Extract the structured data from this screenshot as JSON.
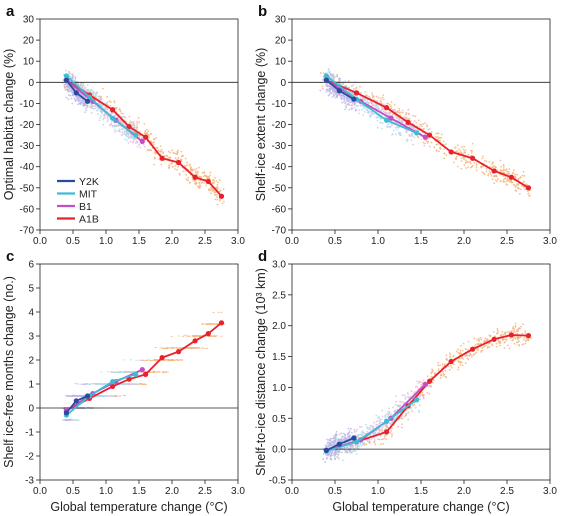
{
  "colors": {
    "Y2K": "#2a4aa0",
    "MIT": "#3fbcd4",
    "B1": "#c24fc8",
    "A1B": "#e8212b",
    "cloud_blue": "#b9b4e6",
    "cloud_cyan": "#a8e0ea",
    "cloud_pink": "#e8b8ea",
    "cloud_orange": "#f4b27a"
  },
  "chart_data": [
    {
      "type": "line",
      "panel_label": "a",
      "ylabel": "Optimal habitat change (%)",
      "xlabel": "",
      "xlim": [
        0.0,
        3.0
      ],
      "ylim": [
        -70,
        30
      ],
      "xticks": [
        "0.0",
        "0.5",
        "1.0",
        "1.5",
        "2.0",
        "2.5",
        "3.0"
      ],
      "yticks": [
        "30",
        "20",
        "10",
        "0",
        "-10",
        "-20",
        "-30",
        "-40",
        "-50",
        "-60",
        "-70"
      ],
      "zero_line": true,
      "legend": {
        "position": "lower-left",
        "entries": [
          "Y2K",
          "MIT",
          "B1",
          "A1B"
        ]
      },
      "series": [
        {
          "name": "Y2K",
          "x": [
            0.4,
            0.55,
            0.72
          ],
          "y": [
            1,
            -5,
            -9
          ]
        },
        {
          "name": "MIT",
          "x": [
            0.4,
            0.75,
            1.1,
            1.45
          ],
          "y": [
            3,
            -7,
            -17,
            -25
          ]
        },
        {
          "name": "B1",
          "x": [
            0.4,
            0.8,
            1.15,
            1.55
          ],
          "y": [
            1,
            -9,
            -18,
            -28
          ]
        },
        {
          "name": "A1B",
          "x": [
            0.4,
            0.75,
            1.1,
            1.35,
            1.6,
            1.85,
            2.1,
            2.35,
            2.55,
            2.75
          ],
          "y": [
            1,
            -6,
            -13,
            -21,
            -26,
            -36,
            -38,
            -45,
            -47,
            -54
          ]
        }
      ]
    },
    {
      "type": "line",
      "panel_label": "b",
      "ylabel": "Shelf-ice extent change (%)",
      "xlabel": "",
      "xlim": [
        0.0,
        3.0
      ],
      "ylim": [
        -70,
        30
      ],
      "xticks": [
        "0.0",
        "0.5",
        "1.0",
        "1.5",
        "2.0",
        "2.5",
        "3.0"
      ],
      "yticks": [
        "30",
        "20",
        "10",
        "0",
        "-10",
        "-20",
        "-30",
        "-40",
        "-50",
        "-60",
        "-70"
      ],
      "zero_line": true,
      "series": [
        {
          "name": "Y2K",
          "x": [
            0.4,
            0.55,
            0.72
          ],
          "y": [
            1,
            -4,
            -8
          ]
        },
        {
          "name": "MIT",
          "x": [
            0.4,
            0.75,
            1.1,
            1.45
          ],
          "y": [
            3,
            -8,
            -18,
            -24
          ]
        },
        {
          "name": "B1",
          "x": [
            0.4,
            0.8,
            1.15,
            1.55
          ],
          "y": [
            1,
            -9,
            -17,
            -26
          ]
        },
        {
          "name": "A1B",
          "x": [
            0.4,
            0.75,
            1.1,
            1.35,
            1.6,
            1.85,
            2.1,
            2.35,
            2.55,
            2.75
          ],
          "y": [
            1,
            -5,
            -12,
            -19,
            -25,
            -33,
            -36,
            -42,
            -45,
            -50
          ]
        }
      ]
    },
    {
      "type": "line",
      "panel_label": "c",
      "ylabel": "Shelf ice-free months change (no.)",
      "xlabel": "Global temperature change (°C)",
      "xlim": [
        0.0,
        3.0
      ],
      "ylim": [
        -3,
        6
      ],
      "xticks": [
        "0.0",
        "0.5",
        "1.0",
        "1.5",
        "2.0",
        "2.5",
        "3.0"
      ],
      "yticks": [
        "6",
        "5",
        "4",
        "3",
        "2",
        "1",
        "0",
        "-1",
        "-2",
        "-3"
      ],
      "zero_line": true,
      "series": [
        {
          "name": "Y2K",
          "x": [
            0.4,
            0.55,
            0.72
          ],
          "y": [
            -0.2,
            0.3,
            0.5
          ]
        },
        {
          "name": "MIT",
          "x": [
            0.4,
            0.75,
            1.1,
            1.45
          ],
          "y": [
            -0.3,
            0.5,
            1.1,
            1.4
          ]
        },
        {
          "name": "B1",
          "x": [
            0.4,
            0.8,
            1.15,
            1.55
          ],
          "y": [
            -0.1,
            0.6,
            1.1,
            1.6
          ]
        },
        {
          "name": "A1B",
          "x": [
            0.4,
            0.75,
            1.1,
            1.35,
            1.6,
            1.85,
            2.1,
            2.35,
            2.55,
            2.75
          ],
          "y": [
            -0.1,
            0.4,
            0.9,
            1.2,
            1.4,
            2.1,
            2.35,
            2.8,
            3.1,
            3.55
          ]
        }
      ]
    },
    {
      "type": "line",
      "panel_label": "d",
      "ylabel": "Shelf-to-ice distance change (10³ km)",
      "xlabel": "Global temperature change (°C)",
      "xlim": [
        0.0,
        3.0
      ],
      "ylim": [
        -0.5,
        3.0
      ],
      "xticks": [
        "0.0",
        "0.5",
        "1.0",
        "1.5",
        "2.0",
        "2.5",
        "3.0"
      ],
      "yticks": [
        "3.0",
        "2.5",
        "2.0",
        "1.5",
        "1.0",
        "0.5",
        "0.0",
        "-0.5"
      ],
      "zero_line": true,
      "series": [
        {
          "name": "Y2K",
          "x": [
            0.4,
            0.55,
            0.72
          ],
          "y": [
            -0.02,
            0.08,
            0.18
          ]
        },
        {
          "name": "MIT",
          "x": [
            0.4,
            0.75,
            1.1,
            1.45
          ],
          "y": [
            -0.03,
            0.12,
            0.45,
            0.8
          ]
        },
        {
          "name": "B1",
          "x": [
            0.4,
            0.8,
            1.15,
            1.55
          ],
          "y": [
            -0.02,
            0.15,
            0.5,
            1.05
          ]
        },
        {
          "name": "A1B",
          "x": [
            0.4,
            0.75,
            1.1,
            1.35,
            1.6,
            1.85,
            2.1,
            2.35,
            2.55,
            2.75
          ],
          "y": [
            -0.02,
            0.12,
            0.28,
            0.7,
            1.1,
            1.42,
            1.62,
            1.78,
            1.85,
            1.84
          ]
        }
      ]
    }
  ]
}
